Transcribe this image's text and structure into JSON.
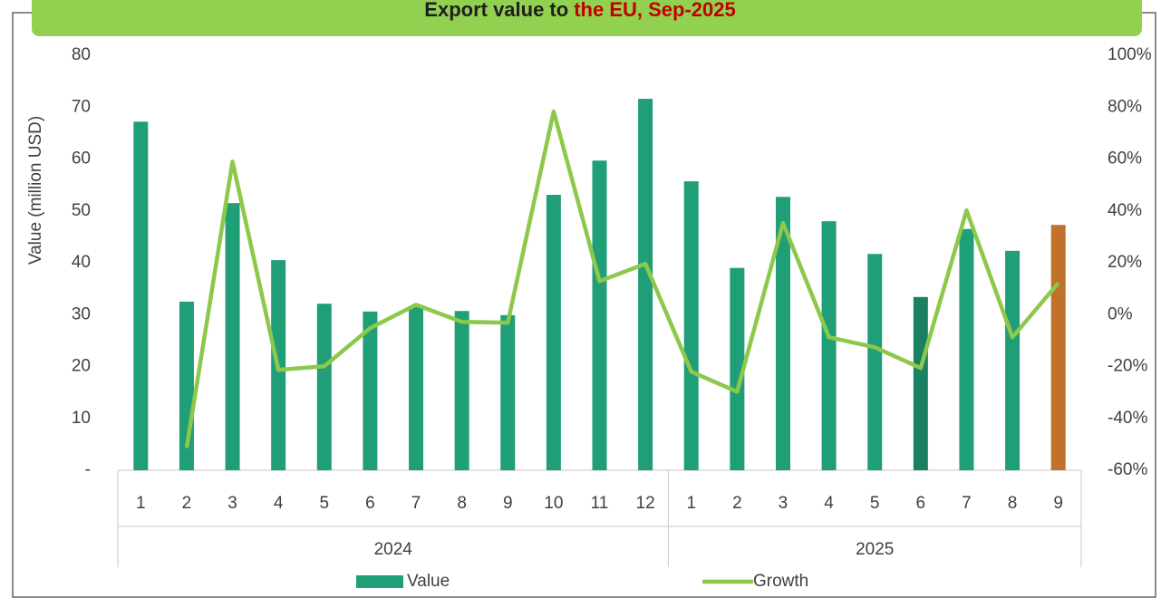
{
  "chart_data": {
    "type": "bar_line",
    "title": "Export value to",
    "title_highlight": "the EU, Sep-2025",
    "title_highlight_color": "#c00000",
    "banner_color": "#92d050",
    "ylabel": "Value (million USD)",
    "groups": [
      {
        "name": "2024",
        "categories": [
          "1",
          "2",
          "3",
          "4",
          "5",
          "6",
          "7",
          "8",
          "9",
          "10",
          "11",
          "12"
        ]
      },
      {
        "name": "2025",
        "categories": [
          "1",
          "2",
          "3",
          "4",
          "5",
          "6",
          "7",
          "8",
          "9"
        ]
      }
    ],
    "ylim": [
      0,
      80
    ],
    "yticks": [
      {
        "value": 0,
        "label": "-"
      },
      10,
      20,
      30,
      40,
      50,
      60,
      70,
      80
    ],
    "y2lim": [
      -60,
      100
    ],
    "y2ticks": [
      {
        "value": -60,
        "label": "-60%"
      },
      {
        "value": -40,
        "label": "-40%"
      },
      {
        "value": -20,
        "label": "-20%"
      },
      {
        "value": 0,
        "label": "0%"
      },
      {
        "value": 20,
        "label": "20%"
      },
      {
        "value": 40,
        "label": "40%"
      },
      {
        "value": 60,
        "label": "60%"
      },
      {
        "value": 80,
        "label": "80%"
      },
      {
        "value": 100,
        "label": "100%"
      }
    ],
    "legend": "bottom",
    "series": [
      {
        "name": "Value",
        "type": "bar",
        "color": "#1f9e78",
        "colors": [
          "#1f9e78",
          "#1f9e78",
          "#1f9e78",
          "#1f9e78",
          "#1f9e78",
          "#1f9e78",
          "#1f9e78",
          "#1f9e78",
          "#1f9e78",
          "#1f9e78",
          "#1f9e78",
          "#1f9e78",
          "#1f9e78",
          "#1f9e78",
          "#1f9e78",
          "#1f9e78",
          "#1f9e78",
          "#1a8064",
          "#1f9e78",
          "#1f9e78",
          "#c0712b"
        ],
        "values": [
          67.2,
          32.5,
          51.5,
          40.5,
          32.1,
          30.6,
          31.5,
          30.7,
          29.9,
          53.1,
          59.7,
          71.6,
          55.7,
          39.0,
          52.7,
          48.0,
          41.7,
          33.4,
          46.5,
          42.3,
          47.3
        ]
      },
      {
        "name": "Growth",
        "type": "line",
        "axis": "y2",
        "color": "#8cc84b",
        "values": [
          null,
          -51.4,
          59.0,
          -21.3,
          -19.9,
          -5.2,
          3.8,
          -2.8,
          -3.1,
          78.3,
          12.9,
          19.6,
          -22.0,
          -29.7,
          35.3,
          -8.7,
          -12.6,
          -20.6,
          40.2,
          -8.7,
          12.2
        ]
      }
    ]
  }
}
